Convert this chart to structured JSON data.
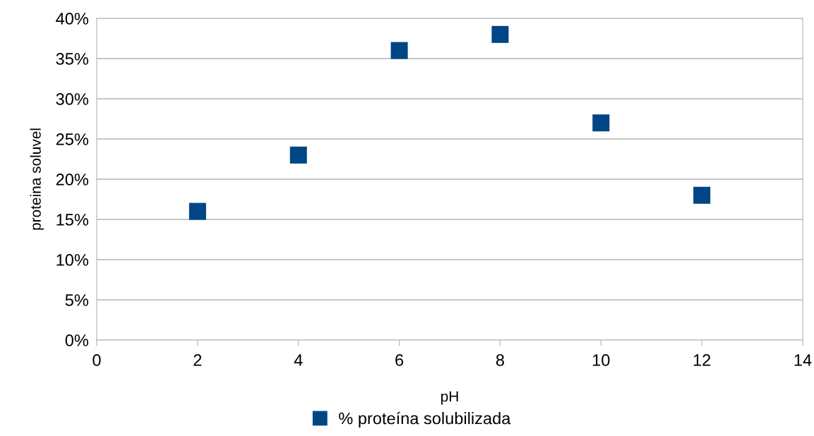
{
  "chart_data": {
    "type": "scatter",
    "xlabel": "pH",
    "ylabel": "proteina soluvel",
    "x": [
      2,
      4,
      6,
      8,
      10,
      12
    ],
    "series": [
      {
        "name": "% proteína solubilizada",
        "color": "#004586",
        "values": [
          16,
          23,
          36,
          38,
          27,
          18
        ]
      }
    ],
    "xlim": [
      0,
      14
    ],
    "xticks": [
      0,
      2,
      4,
      6,
      8,
      10,
      12,
      14
    ],
    "ylim": [
      0,
      40
    ],
    "yticks": [
      {
        "value": 0,
        "label": "0%"
      },
      {
        "value": 5,
        "label": "5%"
      },
      {
        "value": 10,
        "label": "10%"
      },
      {
        "value": 15,
        "label": "15%"
      },
      {
        "value": 20,
        "label": "20%"
      },
      {
        "value": 25,
        "label": "25%"
      },
      {
        "value": 30,
        "label": "30%"
      },
      {
        "value": 35,
        "label": "35%"
      },
      {
        "value": 40,
        "label": "40%"
      }
    ],
    "grid": "y",
    "legend": "bottom",
    "marker": "square"
  }
}
